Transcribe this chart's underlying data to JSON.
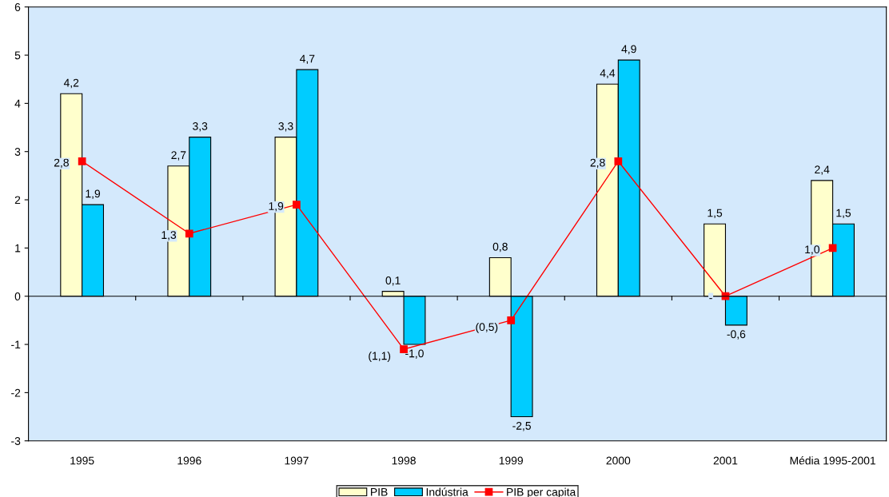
{
  "chart_data": {
    "type": "bar",
    "categories": [
      "1995",
      "1996",
      "1997",
      "1998",
      "1999",
      "2000",
      "2001",
      "Média 1995-2001"
    ],
    "series": [
      {
        "name": "PIB",
        "color": "#ffffcc",
        "values": [
          4.2,
          2.7,
          3.3,
          0.1,
          0.8,
          4.4,
          1.5,
          2.4
        ],
        "value_labels": [
          "4,2",
          "2,7",
          "3,3",
          "0,1",
          "0,8",
          "4,4",
          "1,5",
          "2,4"
        ]
      },
      {
        "name": "Indústria",
        "color": "#00ccff",
        "values": [
          1.9,
          3.3,
          4.7,
          -1.0,
          -2.5,
          4.9,
          -0.6,
          1.5
        ],
        "value_labels": [
          "1,9",
          "3,3",
          "4,7",
          "-1,0",
          "-2,5",
          "4,9",
          "-0,6",
          "1,5"
        ]
      },
      {
        "name": "PIB per capita",
        "type": "line",
        "color": "#ff0000",
        "marker": "square",
        "values": [
          2.8,
          1.3,
          1.9,
          -1.1,
          -0.5,
          2.8,
          0,
          1.0
        ],
        "value_labels": [
          "2,8",
          "1,3",
          "1,9",
          "(1,1)",
          "(0,5)",
          "2,8",
          "-",
          "1,0"
        ]
      }
    ],
    "ylim": [
      -3,
      6
    ],
    "yticks": [
      -3,
      -2,
      -1,
      0,
      1,
      2,
      3,
      4,
      5,
      6
    ],
    "legend": "bottom"
  }
}
